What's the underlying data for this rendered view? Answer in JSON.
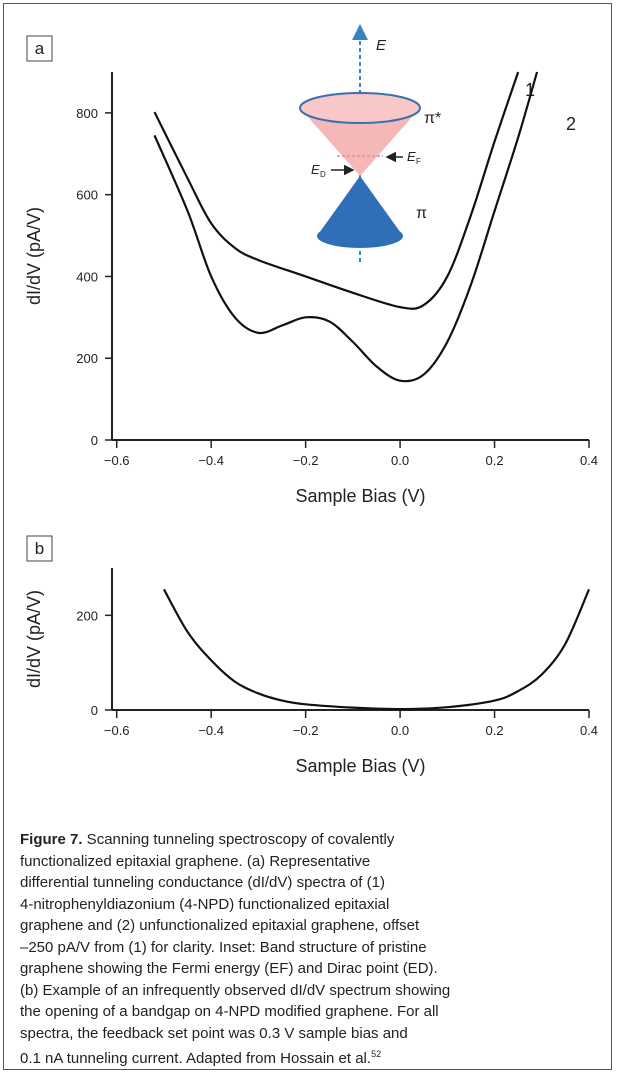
{
  "chart_data": [
    {
      "type": "line",
      "panel": "a",
      "xlabel": "Sample Bias (V)",
      "ylabel": "dI/dV (pA/V)",
      "xlim": [
        -0.61,
        0.4
      ],
      "ylim": [
        0,
        900
      ],
      "xticks": [
        {
          "value": -0.6,
          "label": "−0.6"
        },
        {
          "value": -0.4,
          "label": "−0.4"
        },
        {
          "value": -0.2,
          "label": "−0.2"
        },
        {
          "value": 0,
          "label": "0.0"
        },
        0.2,
        0.4
      ],
      "yticks": [
        0,
        200,
        400,
        600,
        800
      ],
      "series": [
        {
          "name": "1",
          "color": "#111111",
          "x": [
            -0.52,
            -0.45,
            -0.4,
            -0.35,
            -0.3,
            -0.2,
            -0.1,
            0,
            0.05,
            0.1,
            0.15,
            0.2,
            0.25
          ],
          "values": [
            802,
            640,
            530,
            470,
            440,
            400,
            360,
            325,
            330,
            400,
            550,
            730,
            900
          ]
        },
        {
          "name": "2",
          "color": "#111111",
          "x": [
            -0.52,
            -0.45,
            -0.4,
            -0.35,
            -0.3,
            -0.25,
            -0.2,
            -0.15,
            -0.1,
            -0.05,
            0,
            0.05,
            0.1,
            0.15,
            0.2,
            0.25,
            0.29
          ],
          "values": [
            745,
            560,
            400,
            300,
            262,
            280,
            300,
            290,
            240,
            180,
            145,
            160,
            240,
            380,
            560,
            740,
            900
          ]
        }
      ],
      "inset": {
        "energy": "E",
        "upper_band": "π*",
        "lower_band": "π",
        "fermi": "E",
        "fermi_sub": "F",
        "dirac": "E",
        "dirac_sub": "D"
      }
    },
    {
      "type": "line",
      "panel": "b",
      "xlabel": "Sample Bias (V)",
      "ylabel": "dI/dV (pA/V)",
      "xlim": [
        -0.61,
        0.4
      ],
      "ylim": [
        0,
        300
      ],
      "xticks": [
        {
          "value": -0.6,
          "label": "−0.6"
        },
        {
          "value": -0.4,
          "label": "−0.4"
        },
        {
          "value": -0.2,
          "label": "−0.2"
        },
        {
          "value": 0,
          "label": "0.0"
        },
        0.2,
        0.4
      ],
      "yticks": [
        0,
        200
      ],
      "series": [
        {
          "color": "#111111",
          "x": [
            -0.5,
            -0.45,
            -0.4,
            -0.35,
            -0.3,
            -0.25,
            -0.2,
            -0.1,
            0,
            0.1,
            0.2,
            0.25,
            0.3,
            0.35,
            0.4
          ],
          "values": [
            255,
            165,
            105,
            60,
            35,
            20,
            12,
            5,
            2,
            6,
            20,
            40,
            75,
            140,
            255
          ]
        }
      ]
    }
  ],
  "caption": {
    "label": "Figure 7.",
    "lines": [
      " Scanning tunneling spectroscopy of covalently",
      "functionalized epitaxial graphene. (a) Representative",
      "differential tunneling conductance (dI/dV) spectra of (1)",
      "4-nitrophenyldiazonium (4-NPD) functionalized epitaxial",
      "graphene and (2) unfunctionalized epitaxial graphene, offset",
      "–250 pA/V from (1) for clarity. Inset: Band structure of pristine",
      "graphene showing the Fermi energy (EF) and Dirac point (ED).",
      "(b) Example of an infrequently observed dI/dV spectrum showing",
      "the opening of a bandgap on 4-NPD modified graphene. For all",
      "spectra, the feedback set point was 0.3 V sample bias and",
      "0.1 nA tunneling current. Adapted from Hossain et al."
    ],
    "ref": "52"
  }
}
